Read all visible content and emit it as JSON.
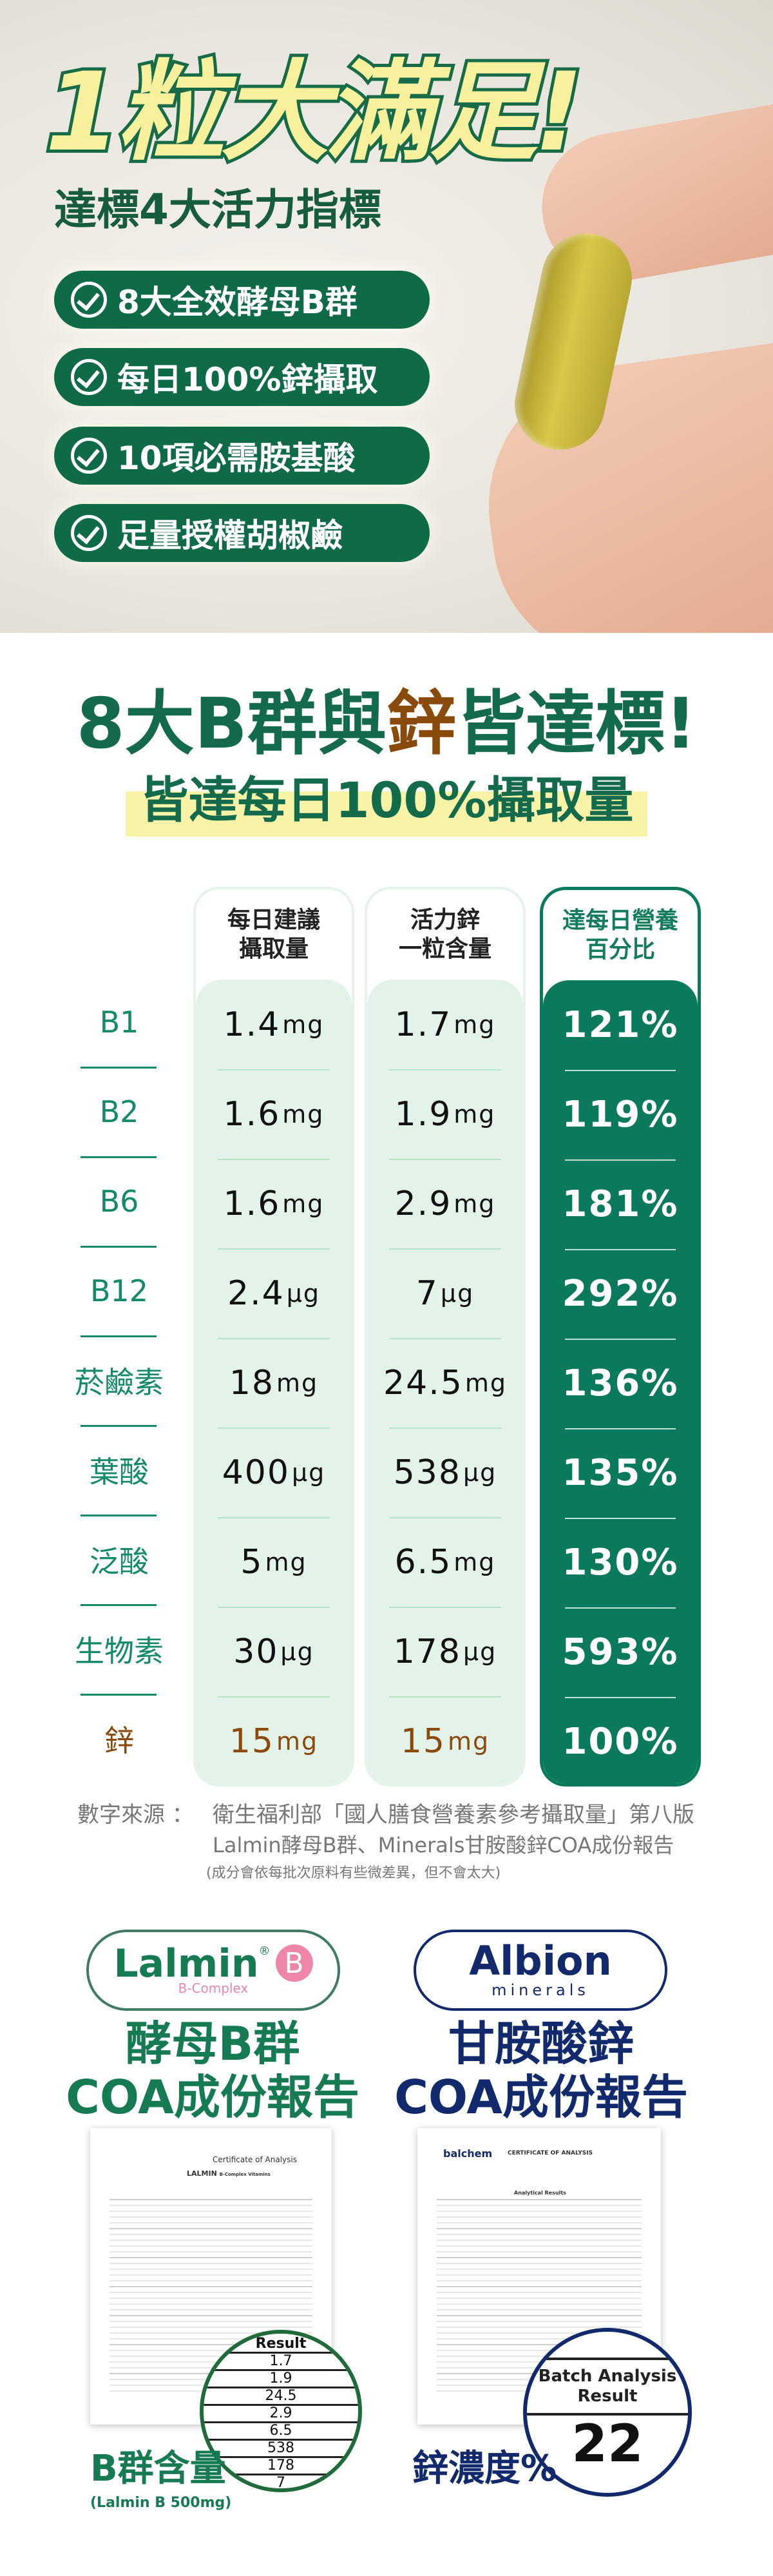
{
  "hero": {
    "title": "1粒大滿足!",
    "subtitle": "達標4大活力指標",
    "pills": [
      "8大全效酵母B群",
      "每日100%鋅攝取",
      "10項必需胺基酸",
      "足量授權胡椒鹼"
    ],
    "colors": {
      "green": "#0f6a48",
      "yellow": "#f7f19d"
    }
  },
  "section2": {
    "title_a": "8大B群與",
    "title_zn": "鋅",
    "title_b": "皆達標!",
    "subtitle": "皆達每日100%攝取量"
  },
  "table": {
    "headers": [
      "每日建議\n攝取量",
      "活力鋅\n一粒含量",
      "達每日營養\n百分比"
    ],
    "rows": [
      {
        "name": "B1",
        "rec": "1.4",
        "rec_u": "mg",
        "cap": "1.7",
        "cap_u": "mg",
        "pct": "121%"
      },
      {
        "name": "B2",
        "rec": "1.6",
        "rec_u": "mg",
        "cap": "1.9",
        "cap_u": "mg",
        "pct": "119%"
      },
      {
        "name": "B6",
        "rec": "1.6",
        "rec_u": "mg",
        "cap": "2.9",
        "cap_u": "mg",
        "pct": "181%"
      },
      {
        "name": "B12",
        "rec": "2.4",
        "rec_u": "μg",
        "cap": "7",
        "cap_u": "μg",
        "pct": "292%"
      },
      {
        "name": "菸鹼素",
        "rec": "18",
        "rec_u": "mg",
        "cap": "24.5",
        "cap_u": "mg",
        "pct": "136%"
      },
      {
        "name": "葉酸",
        "rec": "400",
        "rec_u": "μg",
        "cap": "538",
        "cap_u": "μg",
        "pct": "135%"
      },
      {
        "name": "泛酸",
        "rec": "5",
        "rec_u": "mg",
        "cap": "6.5",
        "cap_u": "mg",
        "pct": "130%"
      },
      {
        "name": "生物素",
        "rec": "30",
        "rec_u": "μg",
        "cap": "178",
        "cap_u": "μg",
        "pct": "593%"
      },
      {
        "name": "鋅",
        "rec": "15",
        "rec_u": "mg",
        "cap": "15",
        "cap_u": "mg",
        "pct": "100%"
      }
    ]
  },
  "footnote": {
    "label": "數字來源 ：",
    "line1": "衛生福利部「國人膳食營養素參考攝取量」第八版",
    "line2": "Lalmin酵母B群、Minerals甘胺酸鋅COA成份報告",
    "line3": "(成分會依每批次原料有些微差異，但不會太大)"
  },
  "coa": {
    "lalmin": {
      "logo": "Lalmin",
      "logo_sub": "B-Complex",
      "badge": "B",
      "reg": "®",
      "heading1": "酵母B群",
      "heading2": "COA成份報告",
      "doc_title": "Certificate of Analysis",
      "doc_brand": "LALMIN",
      "doc_brand_sub": "B-Complex Vitamins",
      "result_header": "Result",
      "results": [
        "1.7",
        "1.9",
        "24.5",
        "2.9",
        "6.5",
        "538",
        "178",
        "7"
      ],
      "caption": "B群含量",
      "caption_sub": "(Lalmin B 500mg)",
      "color": "#167a52"
    },
    "albion": {
      "logo": "Albion",
      "logo_sub": "minerals",
      "heading1": "甘胺酸鋅",
      "heading2": "COA成份報告",
      "doc_brand": "balchem",
      "doc_title": "CERTIFICATE OF ANALYSIS",
      "doc_section": "Analytical Results",
      "result_header": "Batch Analysis Result",
      "result": "22",
      "caption": "鋅濃度%",
      "color": "#12296b"
    }
  }
}
